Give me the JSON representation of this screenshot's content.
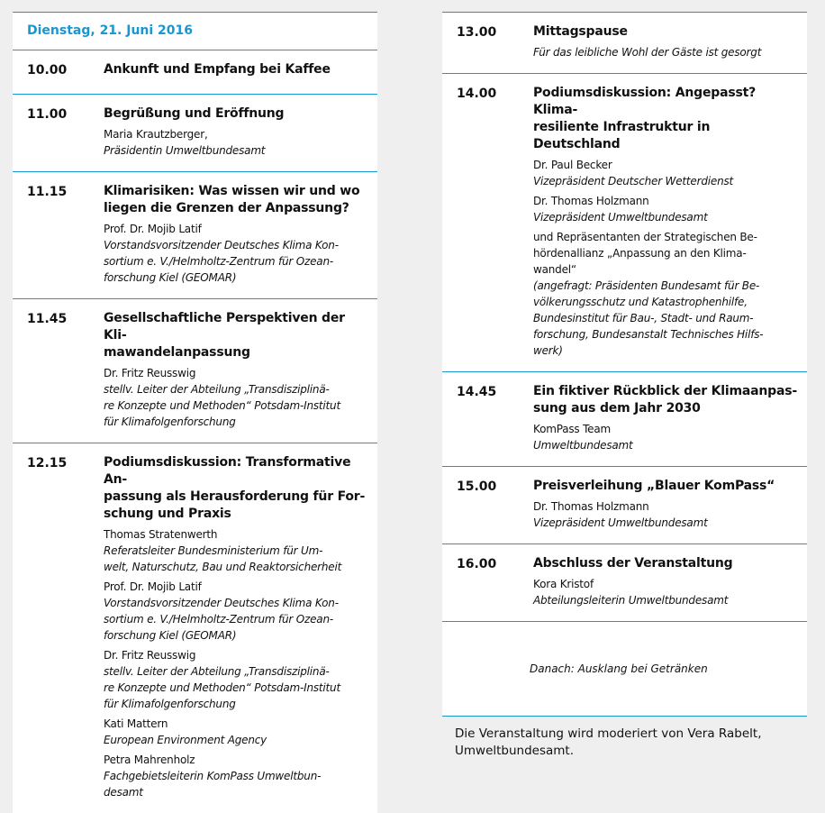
{
  "date_header": "Dienstag, 21. Juni 2016",
  "colors": {
    "accent": "#1a96d0",
    "background": "#efefef"
  },
  "left": [
    {
      "time": "10.00",
      "title": "Ankunft und Empfang bei Kaffee",
      "details": []
    },
    {
      "time": "11.00",
      "title": "Begrüßung und Eröffnung",
      "details": [
        {
          "name": "Maria Krautzberger,",
          "role": "Präsidentin Umweltbundesamt"
        }
      ]
    },
    {
      "time": "11.15",
      "title": "Klimarisiken: Was wissen wir und wo\nliegen die Grenzen der Anpassung?",
      "details": [
        {
          "name": "Prof. Dr. Mojib Latif",
          "role": "Vorstandsvorsitzender Deutsches Klima Kon-\nsortium e. V./Helmholtz-Zentrum für Ozean-\nforschung Kiel (GEOMAR)"
        }
      ]
    },
    {
      "time": "11.45",
      "title": "Gesellschaftliche Perspektiven der Kli-\nmawandelanpassung",
      "details": [
        {
          "name": "Dr. Fritz Reusswig",
          "role": "stellv. Leiter der Abteilung „Transdisziplinä-\nre Konzepte und Methoden“ Potsdam-Institut\nfür Klimafolgenforschung"
        }
      ]
    },
    {
      "time": "12.15",
      "title": "Podiumsdiskussion: Transformative An-\npassung als Herausforderung für For-\nschung und Praxis",
      "details": [
        {
          "name": "Thomas Stratenwerth",
          "role": "Referatsleiter Bundesministerium für Um-\nwelt, Naturschutz, Bau und Reaktorsicherheit"
        },
        {
          "name": "Prof. Dr. Mojib Latif",
          "role": "Vorstandsvorsitzender Deutsches Klima Kon-\nsortium e. V./Helmholtz-Zentrum für Ozean-\nforschung Kiel (GEOMAR)"
        },
        {
          "name": "Dr. Fritz Reusswig",
          "role": "stellv. Leiter der Abteilung „Transdisziplinä-\nre Konzepte und Methoden“ Potsdam-Institut\nfür Klimafolgenforschung"
        },
        {
          "name": "Kati Mattern",
          "role": "European Environment Agency"
        },
        {
          "name": "Petra Mahrenholz",
          "role": "Fachgebietsleiterin KomPass Umweltbun-\ndesamt"
        }
      ]
    }
  ],
  "right": [
    {
      "time": "13.00",
      "title": "Mittagspause",
      "details": [
        {
          "name": "",
          "role": "Für das leibliche Wohl der Gäste ist gesorgt"
        }
      ]
    },
    {
      "time": "14.00",
      "title": "Podiumsdiskussion: Angepasst? Klima-\nresiliente Infrastruktur in Deutschland",
      "details": [
        {
          "name": "Dr. Paul Becker",
          "role": "Vizepräsident Deutscher Wetterdienst"
        },
        {
          "name": "Dr. Thomas Holzmann",
          "role": "Vizepräsident Umweltbundesamt"
        },
        {
          "name": "und Repräsentanten der Strategischen Be-\nhördenallianz „Anpassung an den Klima-\nwandel“",
          "role": "(angefragt: Präsidenten Bundesamt für Be-\nvölkerungsschutz und Katastrophenhilfe,\nBundesinstitut für Bau-, Stadt- und Raum-\nforschung, Bundesanstalt Technisches Hilfs-\nwerk)"
        }
      ]
    },
    {
      "time": "14.45",
      "title": "Ein fiktiver Rückblick der Klimaanpas-\nsung aus dem Jahr 2030",
      "details": [
        {
          "name": "KomPass Team",
          "role": "Umweltbundesamt"
        }
      ]
    },
    {
      "time": "15.00",
      "title": "Preisverleihung „Blauer KomPass“",
      "details": [
        {
          "name": "Dr. Thomas Holzmann",
          "role": "Vizepräsident Umweltbundesamt"
        }
      ]
    },
    {
      "time": "16.00",
      "title": "Abschluss der Veranstaltung",
      "details": [
        {
          "name": "Kora Kristof",
          "role": "Abteilungsleiterin Umweltbundesamt"
        }
      ]
    }
  ],
  "closing": "Danach: Ausklang bei Getränken",
  "footer": "Die Veranstaltung wird moderiert von Vera Rabelt,\nUmweltbundesamt."
}
